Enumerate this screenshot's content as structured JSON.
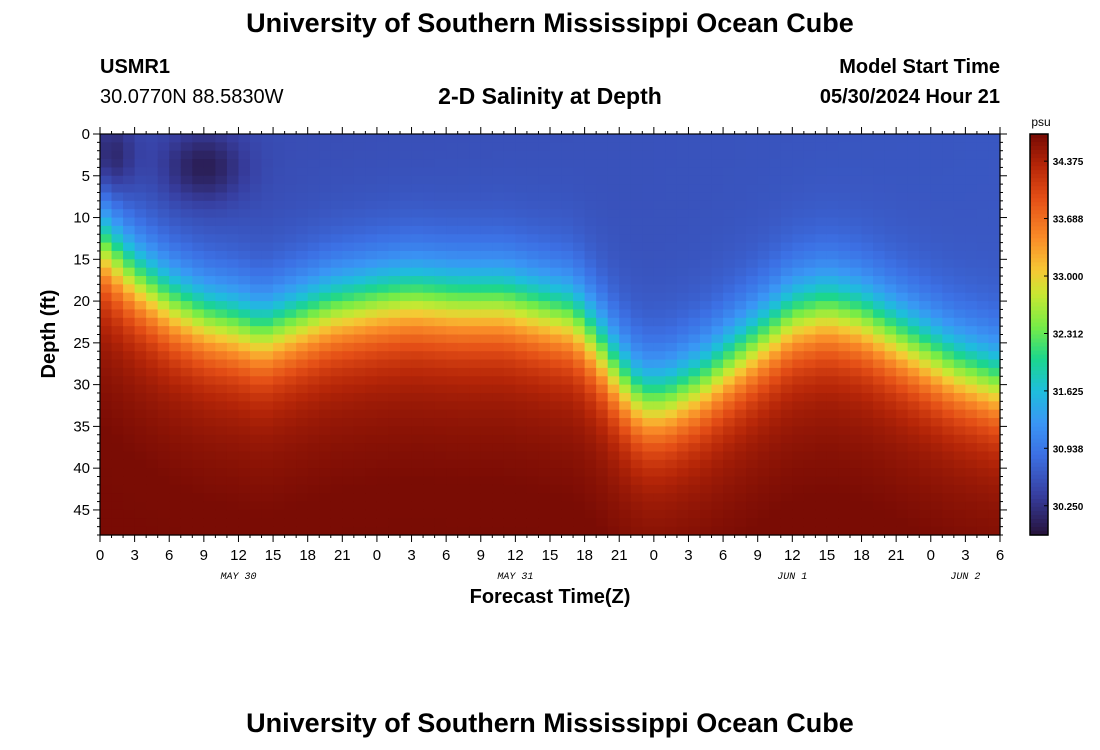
{
  "header": {
    "title": "University of Southern Mississippi Ocean Cube",
    "station_id": "USMR1",
    "coordinates": "30.0770N  88.5830W",
    "subtitle": "2-D Salinity at Depth",
    "model_start_label": "Model Start Time",
    "model_start_value": "05/30/2024 Hour 21"
  },
  "footer": {
    "title": "University of Southern Mississippi Ocean Cube"
  },
  "chart_data": {
    "type": "heatmap",
    "title": "2-D Salinity at Depth",
    "xlabel": "Forecast Time(Z)",
    "ylabel": "Depth (ft)",
    "xlim_hours": [
      0,
      78
    ],
    "ylim_ft": [
      0,
      48
    ],
    "x_tick_labels": [
      "0",
      "3",
      "6",
      "9",
      "12",
      "15",
      "18",
      "21",
      "0",
      "3",
      "6",
      "9",
      "12",
      "15",
      "18",
      "21",
      "0",
      "3",
      "6",
      "9",
      "12",
      "15",
      "18",
      "21",
      "0",
      "3",
      "6"
    ],
    "y_tick_labels": [
      "0",
      "5",
      "10",
      "15",
      "20",
      "25",
      "30",
      "35",
      "40",
      "45"
    ],
    "date_labels": [
      {
        "label": "MAY 30",
        "hour": 12
      },
      {
        "label": "MAY 31",
        "hour": 36
      },
      {
        "label": "JUN 1",
        "hour": 60
      },
      {
        "label": "JUN 2",
        "hour": 75
      }
    ],
    "colorbar": {
      "unit": "psu",
      "min": 29.9,
      "max": 34.7,
      "ticks": [
        "34.375",
        "33.688",
        "33.000",
        "32.312",
        "31.625",
        "30.938",
        "30.250"
      ],
      "tick_values": [
        34.375,
        33.688,
        33.0,
        32.312,
        31.625,
        30.938,
        30.25
      ]
    },
    "halocline_depth_ft": [
      [
        0,
        13
      ],
      [
        3,
        17
      ],
      [
        6,
        20
      ],
      [
        9,
        22
      ],
      [
        12,
        23
      ],
      [
        14,
        24
      ],
      [
        16,
        23
      ],
      [
        20,
        21
      ],
      [
        24,
        20
      ],
      [
        27,
        19.5
      ],
      [
        31,
        20
      ],
      [
        35,
        20
      ],
      [
        38,
        21
      ],
      [
        41,
        22
      ],
      [
        43,
        25
      ],
      [
        45,
        29
      ],
      [
        47,
        32
      ],
      [
        49,
        32
      ],
      [
        52,
        30
      ],
      [
        55,
        27
      ],
      [
        58,
        24
      ],
      [
        60,
        22
      ],
      [
        63,
        21
      ],
      [
        66,
        22
      ],
      [
        70,
        25
      ],
      [
        74,
        28
      ],
      [
        78,
        30
      ]
    ],
    "surface_salinity_psu": 30.5,
    "bottom_salinity_psu": 34.4
  }
}
